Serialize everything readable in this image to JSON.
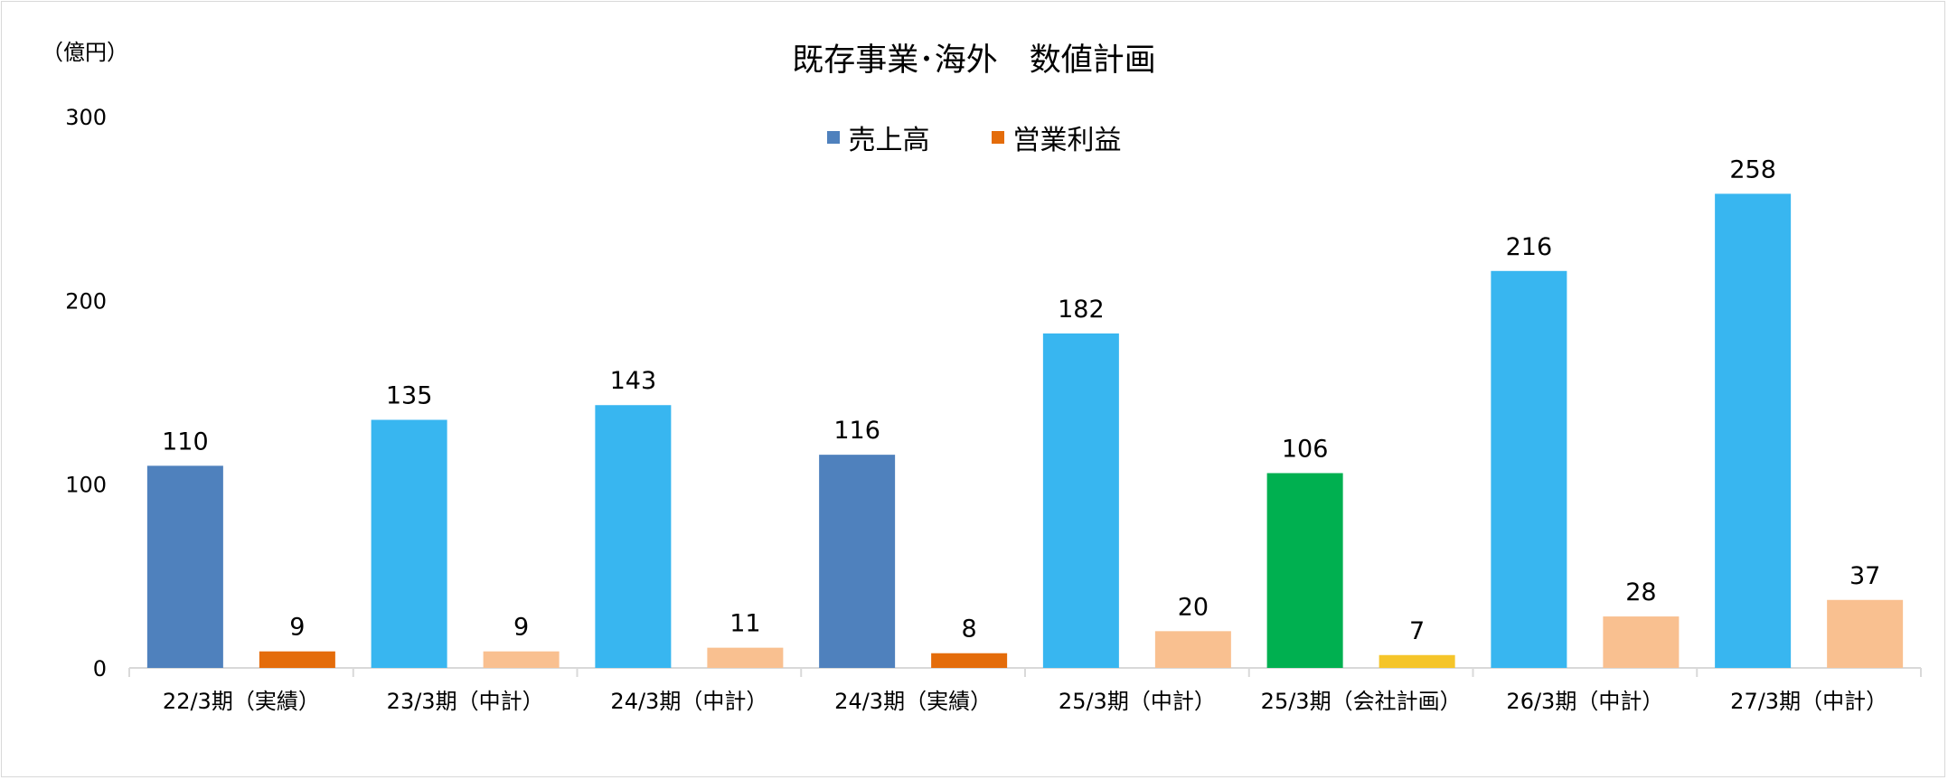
{
  "chart": {
    "title": "既存事業･海外　数値計画",
    "unit_label": "（億円）",
    "legend": [
      {
        "label": "売上高",
        "color": "#4f81bd"
      },
      {
        "label": "営業利益",
        "color": "#e46c0a"
      }
    ]
  },
  "chart_data": {
    "type": "bar",
    "title": "既存事業･海外　数値計画",
    "ylabel": "（億円）",
    "ylim": [
      0,
      300
    ],
    "yticks": [
      0,
      100,
      200,
      300
    ],
    "grid": false,
    "legend_position": "top-center",
    "categories": [
      "22/3期（実績）",
      "23/3期（中計）",
      "24/3期（中計）",
      "24/3期（実績）",
      "25/3期（中計）",
      "25/3期（会社計画）",
      "26/3期（中計）",
      "27/3期（中計）"
    ],
    "series": [
      {
        "name": "売上高",
        "values": [
          110,
          135,
          143,
          116,
          182,
          106,
          216,
          258
        ],
        "colors": [
          "#4f81bd",
          "#38b6f0",
          "#38b6f0",
          "#4f81bd",
          "#38b6f0",
          "#00b050",
          "#38b6f0",
          "#38b6f0"
        ]
      },
      {
        "name": "営業利益",
        "values": [
          9,
          9,
          11,
          8,
          20,
          7,
          28,
          37
        ],
        "colors": [
          "#e46c0a",
          "#f9c090",
          "#f9c090",
          "#e46c0a",
          "#f9c090",
          "#f5c52a",
          "#f9c090",
          "#f9c090"
        ]
      }
    ]
  }
}
